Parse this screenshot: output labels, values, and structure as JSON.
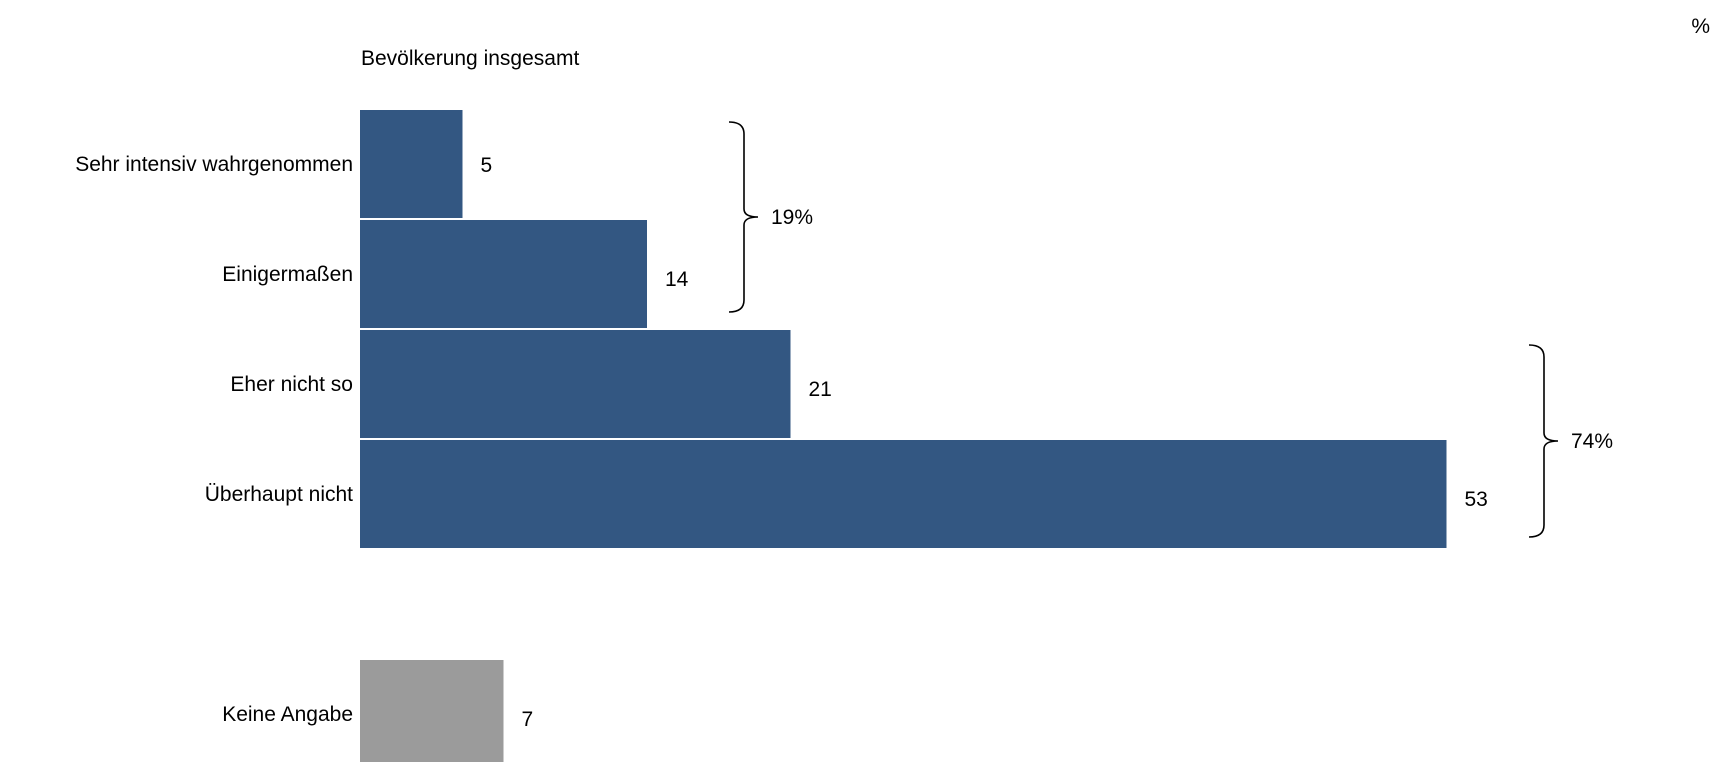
{
  "chart_data": {
    "type": "bar",
    "orientation": "horizontal",
    "unit": "%",
    "subtitle": "Bevölkerung insgesamt",
    "categories": [
      "Sehr intensiv wahrgenommen",
      "Einigermaßen",
      "Eher nicht so",
      "Überhaupt nicht",
      "Keine Angabe"
    ],
    "values": [
      5,
      14,
      21,
      53,
      7
    ],
    "value_labels": [
      "5",
      "14",
      "21",
      "53",
      "7"
    ],
    "colors": [
      "#335782",
      "#335782",
      "#335782",
      "#335782",
      "#9b9b9b"
    ],
    "groups": [
      {
        "label": "19%",
        "value": 19,
        "members": [
          0,
          1
        ]
      },
      {
        "label": "74%",
        "value": 74,
        "members": [
          2,
          3
        ]
      }
    ],
    "grid": false,
    "legend": "none"
  }
}
